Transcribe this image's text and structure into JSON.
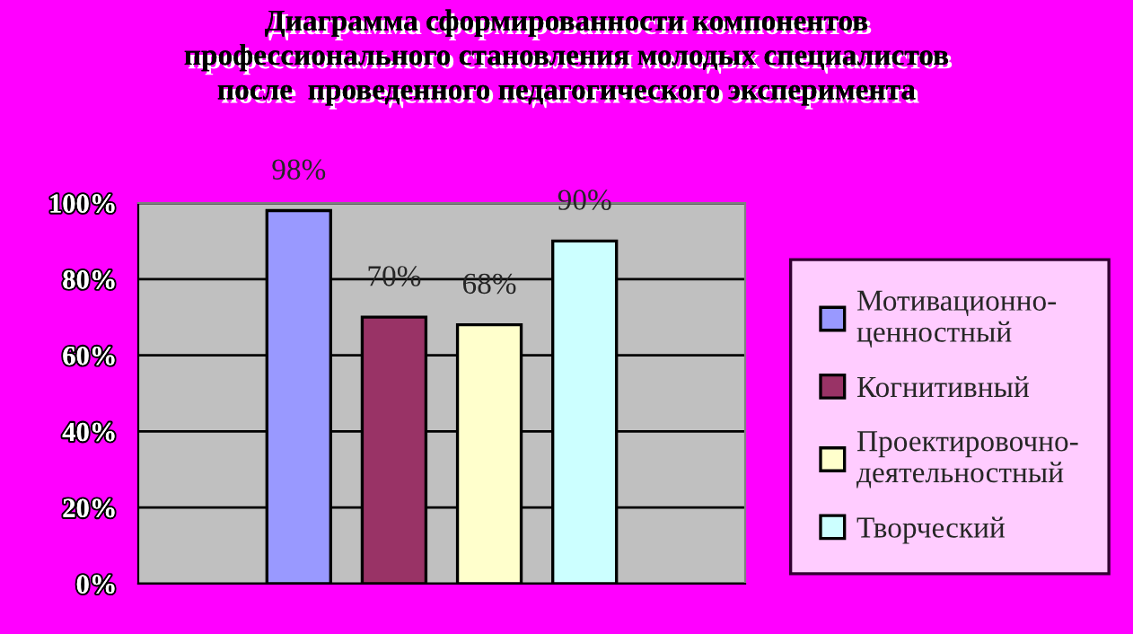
{
  "chart_data": {
    "type": "bar",
    "title": "Диаграмма сформированности компонентов\nпрофессионального становления молодых специалистов\nпосле  проведенного педагогического эксперимента",
    "categories": [
      null
    ],
    "series": [
      {
        "name": "Мотивационно-ценностный",
        "color": "#9999ff",
        "values": [
          98
        ],
        "value_labels": [
          "98%"
        ]
      },
      {
        "name": "Когнитивный",
        "color": "#993366",
        "values": [
          70
        ],
        "value_labels": [
          "70%"
        ]
      },
      {
        "name": "Проектировочно-деятельностный",
        "color": "#ffffcc",
        "values": [
          68
        ],
        "value_labels": [
          "68%"
        ]
      },
      {
        "name": "Творческий",
        "color": "#ccffff",
        "values": [
          90
        ],
        "value_labels": [
          "90%"
        ]
      }
    ],
    "ylim": [
      0,
      100
    ],
    "yticks": [
      {
        "value": 0,
        "label": "0%"
      },
      {
        "value": 20,
        "label": "20%"
      },
      {
        "value": 40,
        "label": "40%"
      },
      {
        "value": 60,
        "label": "60%"
      },
      {
        "value": 80,
        "label": "80%"
      },
      {
        "value": 100,
        "label": "100%"
      }
    ],
    "grid": "y",
    "legend": "right"
  }
}
